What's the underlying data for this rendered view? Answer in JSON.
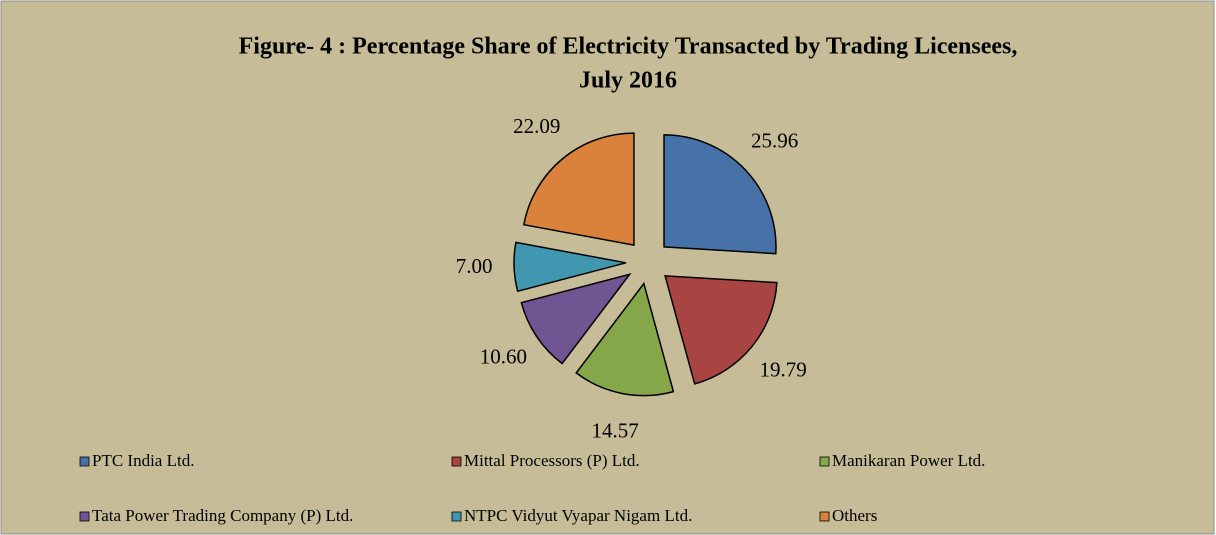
{
  "chart_data": {
    "type": "pie",
    "title": [
      "Figure- 4 : Percentage Share of Electricity Transacted by Trading Licensees,",
      "July 2016"
    ],
    "categories": [
      "PTC India Ltd.",
      "Mittal Processors (P) Ltd.",
      "Manikaran Power Ltd.",
      "Tata Power Trading Company (P) Ltd.",
      "NTPC Vidyut Vyapar Nigam Ltd.",
      "Others"
    ],
    "values": [
      25.96,
      19.79,
      14.57,
      10.6,
      7.0,
      22.09
    ],
    "value_labels": [
      "25.96",
      "19.79",
      "14.57",
      "10.60",
      "7.00",
      "22.09"
    ],
    "colors": [
      "#4672a8",
      "#a84442",
      "#86a64a",
      "#6f5591",
      "#4197b0",
      "#da823c"
    ],
    "legend": "bottom"
  }
}
